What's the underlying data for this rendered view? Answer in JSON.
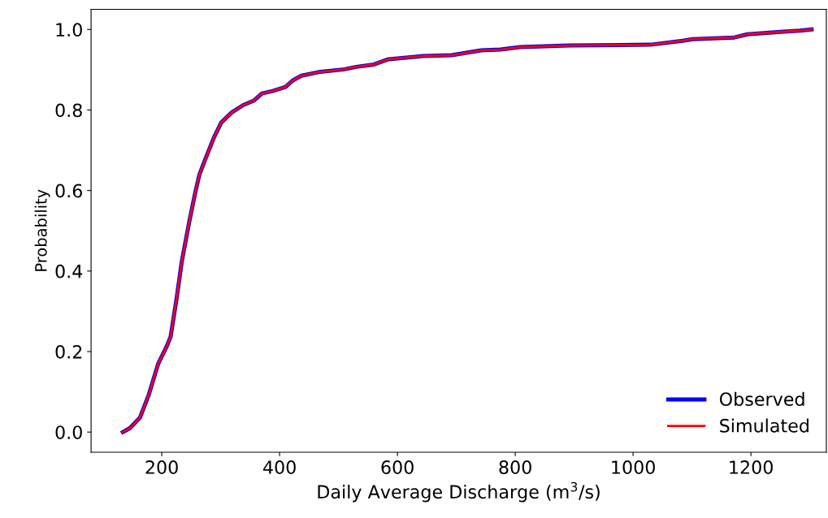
{
  "chart_data": {
    "type": "line",
    "xlabel": "Daily Average Discharge (m$^{3}$/s)",
    "ylabel": "Probability",
    "x": [
      134,
      146,
      163,
      178,
      194,
      209,
      215,
      225,
      234,
      247,
      257,
      264,
      274,
      289,
      301,
      319,
      338,
      356,
      370,
      388,
      410,
      422,
      437,
      466,
      510,
      530,
      560,
      585,
      643,
      692,
      742,
      775,
      808,
      891,
      1029,
      1084,
      1101,
      1172,
      1194,
      1250,
      1283,
      1303
    ],
    "series": [
      {
        "name": "Observed",
        "color": "#0000ff",
        "values": [
          0.0,
          0.01,
          0.036,
          0.093,
          0.17,
          0.215,
          0.237,
          0.33,
          0.424,
          0.525,
          0.596,
          0.64,
          0.678,
          0.733,
          0.769,
          0.794,
          0.812,
          0.823,
          0.841,
          0.847,
          0.857,
          0.873,
          0.885,
          0.894,
          0.901,
          0.907,
          0.913,
          0.926,
          0.934,
          0.936,
          0.948,
          0.95,
          0.956,
          0.96,
          0.962,
          0.972,
          0.976,
          0.98,
          0.988,
          0.994,
          0.997,
          1.0
        ]
      },
      {
        "name": "Simulated",
        "color": "#ff0000",
        "values": [
          0.0,
          0.01,
          0.036,
          0.093,
          0.17,
          0.215,
          0.237,
          0.33,
          0.424,
          0.525,
          0.596,
          0.64,
          0.678,
          0.733,
          0.769,
          0.794,
          0.812,
          0.823,
          0.841,
          0.847,
          0.857,
          0.873,
          0.885,
          0.894,
          0.901,
          0.907,
          0.913,
          0.926,
          0.934,
          0.936,
          0.948,
          0.95,
          0.956,
          0.96,
          0.962,
          0.972,
          0.976,
          0.98,
          0.988,
          0.994,
          0.997,
          1.0
        ]
      }
    ],
    "xlim": [
      80,
      1328
    ],
    "xticks": [
      200,
      400,
      600,
      800,
      1000,
      1200
    ],
    "ylim": [
      -0.05,
      1.05
    ],
    "yticks": [
      {
        "value": 0,
        "label": "0.0"
      },
      {
        "value": 0.2,
        "label": "0.2"
      },
      {
        "value": 0.4,
        "label": "0.4"
      },
      {
        "value": 0.6,
        "label": "0.6"
      },
      {
        "value": 0.8,
        "label": "0.8"
      },
      {
        "value": 1,
        "label": "1.0"
      }
    ],
    "legend": "lower right",
    "grid": false
  }
}
